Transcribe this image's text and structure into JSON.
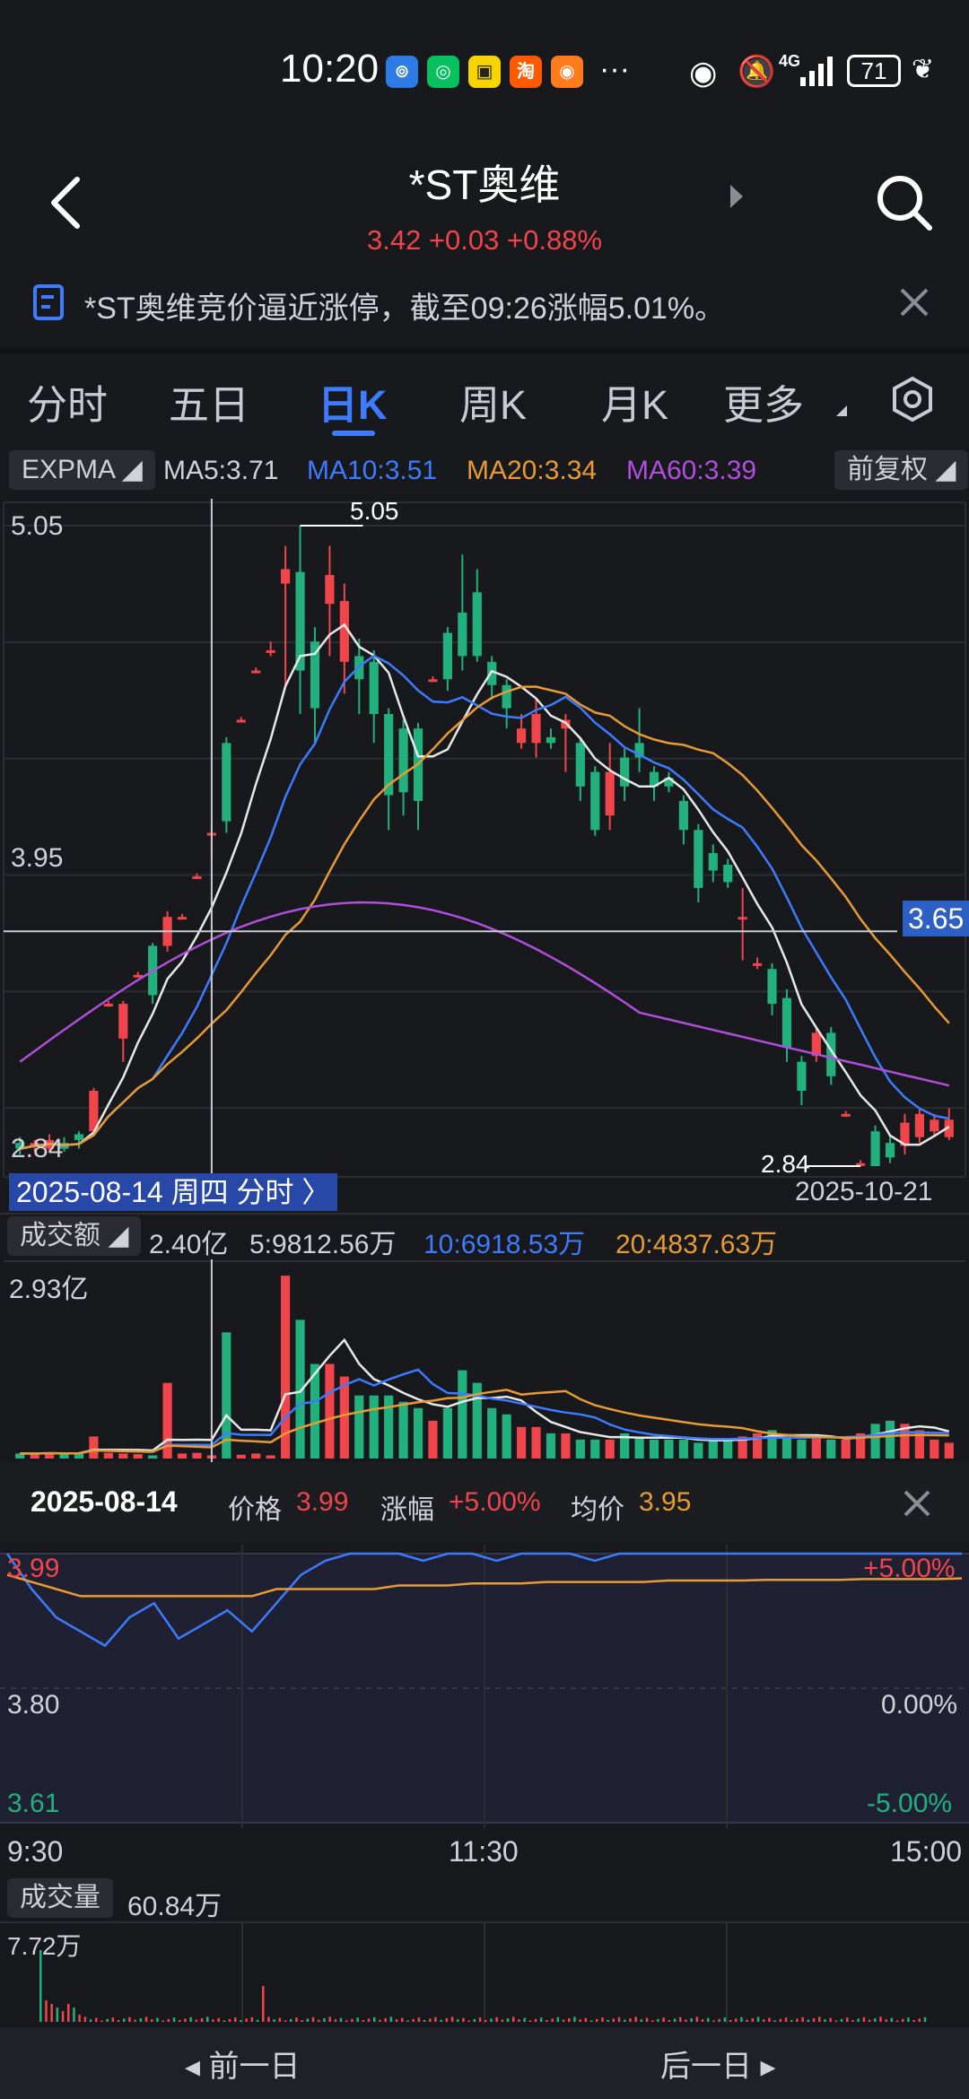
{
  "status_bar": {
    "time": "10:20",
    "battery": "71",
    "signal_label": "4G"
  },
  "header": {
    "title": "*ST奥维",
    "price": "3.42",
    "change": "+0.03",
    "change_pct": "+0.88%"
  },
  "notice": {
    "text": "*ST奥维竞价逼近涨停，截至09:26涨幅5.01%。"
  },
  "tabs": [
    "分时",
    "五日",
    "日K",
    "周K",
    "月K",
    "更多"
  ],
  "active_tab": "日K",
  "indicator_row": {
    "selector": "EXPMA",
    "ma5": "MA5:3.71",
    "ma10": "MA10:3.51",
    "ma20": "MA20:3.34",
    "ma60": "MA60:3.39",
    "adjust": "前复权"
  },
  "kline": {
    "y_max_label": "5.05",
    "y_mid_label": "3.95",
    "y_min_label": "2.84",
    "crosshair_price": "3.65",
    "high_marker": "5.05",
    "low_marker": "2.84",
    "selected_date_chip": "2025-08-14 周四 分时 〉",
    "end_date": "2025-10-21"
  },
  "volume_row": {
    "selector": "成交额",
    "total": "2.40亿",
    "ma5": "5:9812.56万",
    "ma10": "10:6918.53万",
    "ma20": "20:4837.63万",
    "y_max_label": "2.93亿"
  },
  "popup": {
    "date": "2025-08-14",
    "price_label": "价格",
    "price_value": "3.99",
    "change_label": "涨幅",
    "change_value": "+5.00%",
    "avg_label": "均价",
    "avg_value": "3.95",
    "y_top": "3.99",
    "y_mid": "3.80",
    "y_bottom": "3.61",
    "pct_top": "+5.00%",
    "pct_mid": "0.00%",
    "pct_bottom": "-5.00%",
    "time_start": "9:30",
    "time_mid": "11:30",
    "time_end": "15:00",
    "volume_label": "成交量",
    "volume_value": "60.84万",
    "volume_max": "7.72万"
  },
  "bottom_nav": {
    "prev": "前一日",
    "next": "后一日"
  },
  "colors": {
    "up": "#f0454a",
    "down": "#22b07d",
    "accent": "#3d7bff",
    "ma5": "#e8e8e8",
    "ma10": "#3d7bff",
    "ma20": "#e89a34",
    "ma60": "#b04fdc"
  },
  "chart_data": [
    {
      "type": "candlestick",
      "title": "日K",
      "ylim": [
        2.84,
        5.05
      ],
      "candles": [
        {
          "o": 2.92,
          "c": 2.9,
          "h": 2.94,
          "l": 2.88
        },
        {
          "o": 2.91,
          "c": 2.92,
          "h": 2.93,
          "l": 2.89
        },
        {
          "o": 2.9,
          "c": 2.93,
          "h": 2.95,
          "l": 2.89
        },
        {
          "o": 2.92,
          "c": 2.9,
          "h": 2.94,
          "l": 2.89
        },
        {
          "o": 2.95,
          "c": 2.93,
          "h": 2.96,
          "l": 2.9
        },
        {
          "o": 2.96,
          "c": 3.1,
          "h": 3.11,
          "l": 2.95
        },
        {
          "o": 3.4,
          "c": 3.4,
          "h": 3.41,
          "l": 3.39
        },
        {
          "o": 3.28,
          "c": 3.4,
          "h": 3.41,
          "l": 3.2
        },
        {
          "o": 3.5,
          "c": 3.5,
          "h": 3.51,
          "l": 3.49
        },
        {
          "o": 3.6,
          "c": 3.43,
          "h": 3.61,
          "l": 3.4
        },
        {
          "o": 3.6,
          "c": 3.7,
          "h": 3.72,
          "l": 3.58
        },
        {
          "o": 3.7,
          "c": 3.7,
          "h": 3.71,
          "l": 3.69
        },
        {
          "o": 3.84,
          "c": 3.84,
          "h": 3.85,
          "l": 3.83
        },
        {
          "o": 3.99,
          "c": 3.99,
          "h": 4.0,
          "l": 3.9
        },
        {
          "o": 4.3,
          "c": 4.03,
          "h": 4.32,
          "l": 3.99
        },
        {
          "o": 4.38,
          "c": 4.38,
          "h": 4.39,
          "l": 4.37
        },
        {
          "o": 4.55,
          "c": 4.55,
          "h": 4.56,
          "l": 4.54
        },
        {
          "o": 4.62,
          "c": 4.62,
          "h": 4.65,
          "l": 4.6
        },
        {
          "o": 4.85,
          "c": 4.9,
          "h": 4.98,
          "l": 4.5
        },
        {
          "o": 4.89,
          "c": 4.55,
          "h": 5.05,
          "l": 4.4
        },
        {
          "o": 4.65,
          "c": 4.42,
          "h": 4.7,
          "l": 4.3
        },
        {
          "o": 4.78,
          "c": 4.88,
          "h": 4.98,
          "l": 4.6
        },
        {
          "o": 4.58,
          "c": 4.79,
          "h": 4.85,
          "l": 4.47
        },
        {
          "o": 4.6,
          "c": 4.52,
          "h": 4.66,
          "l": 4.4
        },
        {
          "o": 4.58,
          "c": 4.4,
          "h": 4.62,
          "l": 4.3
        },
        {
          "o": 4.4,
          "c": 4.12,
          "h": 4.42,
          "l": 4.0
        },
        {
          "o": 4.35,
          "c": 4.13,
          "h": 4.38,
          "l": 4.05
        },
        {
          "o": 4.35,
          "c": 4.1,
          "h": 4.37,
          "l": 4.0
        },
        {
          "o": 4.52,
          "c": 4.52,
          "h": 4.53,
          "l": 4.51
        },
        {
          "o": 4.68,
          "c": 4.52,
          "h": 4.7,
          "l": 4.48
        },
        {
          "o": 4.75,
          "c": 4.6,
          "h": 4.95,
          "l": 4.55
        },
        {
          "o": 4.82,
          "c": 4.6,
          "h": 4.9,
          "l": 4.58
        },
        {
          "o": 4.58,
          "c": 4.5,
          "h": 4.6,
          "l": 4.45
        },
        {
          "o": 4.5,
          "c": 4.42,
          "h": 4.52,
          "l": 4.35
        },
        {
          "o": 4.3,
          "c": 4.35,
          "h": 4.4,
          "l": 4.28
        },
        {
          "o": 4.3,
          "c": 4.4,
          "h": 4.45,
          "l": 4.25
        },
        {
          "o": 4.32,
          "c": 4.3,
          "h": 4.35,
          "l": 4.28
        },
        {
          "o": 4.35,
          "c": 4.38,
          "h": 4.4,
          "l": 4.2
        },
        {
          "o": 4.3,
          "c": 4.15,
          "h": 4.32,
          "l": 4.1
        },
        {
          "o": 4.2,
          "c": 4.0,
          "h": 4.22,
          "l": 3.98
        },
        {
          "o": 4.05,
          "c": 4.2,
          "h": 4.3,
          "l": 4.0
        },
        {
          "o": 4.25,
          "c": 4.15,
          "h": 4.28,
          "l": 4.1
        },
        {
          "o": 4.3,
          "c": 4.25,
          "h": 4.42,
          "l": 4.2
        },
        {
          "o": 4.2,
          "c": 4.15,
          "h": 4.22,
          "l": 4.1
        },
        {
          "o": 4.18,
          "c": 4.15,
          "h": 4.2,
          "l": 4.13
        },
        {
          "o": 4.1,
          "c": 4.0,
          "h": 4.12,
          "l": 3.95
        },
        {
          "o": 4.0,
          "c": 3.8,
          "h": 4.02,
          "l": 3.75
        },
        {
          "o": 3.92,
          "c": 3.86,
          "h": 3.95,
          "l": 3.82
        },
        {
          "o": 3.88,
          "c": 3.82,
          "h": 3.9,
          "l": 3.8
        },
        {
          "o": 3.7,
          "c": 3.7,
          "h": 3.8,
          "l": 3.55
        },
        {
          "o": 3.54,
          "c": 3.54,
          "h": 3.56,
          "l": 3.52
        },
        {
          "o": 3.52,
          "c": 3.4,
          "h": 3.54,
          "l": 3.36
        },
        {
          "o": 3.42,
          "c": 3.25,
          "h": 3.45,
          "l": 3.2
        },
        {
          "o": 3.2,
          "c": 3.1,
          "h": 3.22,
          "l": 3.05
        },
        {
          "o": 3.22,
          "c": 3.3,
          "h": 3.32,
          "l": 3.2
        },
        {
          "o": 3.3,
          "c": 3.15,
          "h": 3.32,
          "l": 3.12
        },
        {
          "o": 3.02,
          "c": 3.02,
          "h": 3.03,
          "l": 3.01
        },
        {
          "o": 2.85,
          "c": 2.85,
          "h": 2.86,
          "l": 2.84
        },
        {
          "o": 2.96,
          "c": 2.84,
          "h": 2.98,
          "l": 2.84
        },
        {
          "o": 2.92,
          "c": 2.87,
          "h": 2.95,
          "l": 2.85
        },
        {
          "o": 2.91,
          "c": 2.99,
          "h": 3.02,
          "l": 2.88
        },
        {
          "o": 2.94,
          "c": 3.02,
          "h": 3.04,
          "l": 2.92
        },
        {
          "o": 2.96,
          "c": 3.0,
          "h": 3.02,
          "l": 2.94
        },
        {
          "o": 2.94,
          "c": 3.0,
          "h": 3.04,
          "l": 2.93
        }
      ]
    },
    {
      "type": "bar",
      "title": "成交额",
      "ylim": [
        0,
        2.93
      ],
      "values": [
        0.08,
        0.08,
        0.09,
        0.08,
        0.09,
        0.35,
        0.09,
        0.08,
        0.07,
        0.05,
        1.2,
        0.08,
        0.09,
        0.05,
        2.0,
        0.06,
        0.08,
        0.05,
        2.9,
        2.2,
        1.5,
        1.5,
        1.3,
        1.0,
        1.0,
        1.0,
        0.9,
        0.8,
        0.6,
        0.8,
        1.4,
        1.2,
        0.8,
        0.7,
        0.5,
        0.5,
        0.4,
        0.4,
        0.3,
        0.3,
        0.3,
        0.4,
        0.35,
        0.3,
        0.3,
        0.3,
        0.25,
        0.3,
        0.3,
        0.35,
        0.4,
        0.45,
        0.35,
        0.3,
        0.35,
        0.3,
        0.3,
        0.4,
        0.55,
        0.6,
        0.55,
        0.45,
        0.3,
        0.25
      ]
    },
    {
      "type": "line",
      "title": "分时",
      "ylim": [
        3.61,
        3.99
      ],
      "series": [
        {
          "name": "价格",
          "values": [
            3.99,
            3.94,
            3.9,
            3.88,
            3.86,
            3.9,
            3.92,
            3.87,
            3.89,
            3.91,
            3.88,
            3.92,
            3.96,
            3.98,
            3.99,
            3.99,
            3.99,
            3.98,
            3.99,
            3.99,
            3.98,
            3.99,
            3.99,
            3.99,
            3.98,
            3.99,
            3.99,
            3.99,
            3.99,
            3.99,
            3.99,
            3.99,
            3.99,
            3.99,
            3.99,
            3.99,
            3.99,
            3.99,
            3.99,
            3.99
          ]
        },
        {
          "name": "均价",
          "values": [
            3.96,
            3.95,
            3.94,
            3.93,
            3.93,
            3.93,
            3.93,
            3.93,
            3.93,
            3.93,
            3.93,
            3.94,
            3.94,
            3.94,
            3.94,
            3.94,
            3.945,
            3.945,
            3.945,
            3.948,
            3.948,
            3.948,
            3.95,
            3.95,
            3.95,
            3.95,
            3.95,
            3.952,
            3.952,
            3.952,
            3.952,
            3.953,
            3.953,
            3.953,
            3.953,
            3.954,
            3.954,
            3.954,
            3.954,
            3.955
          ]
        }
      ]
    }
  ]
}
